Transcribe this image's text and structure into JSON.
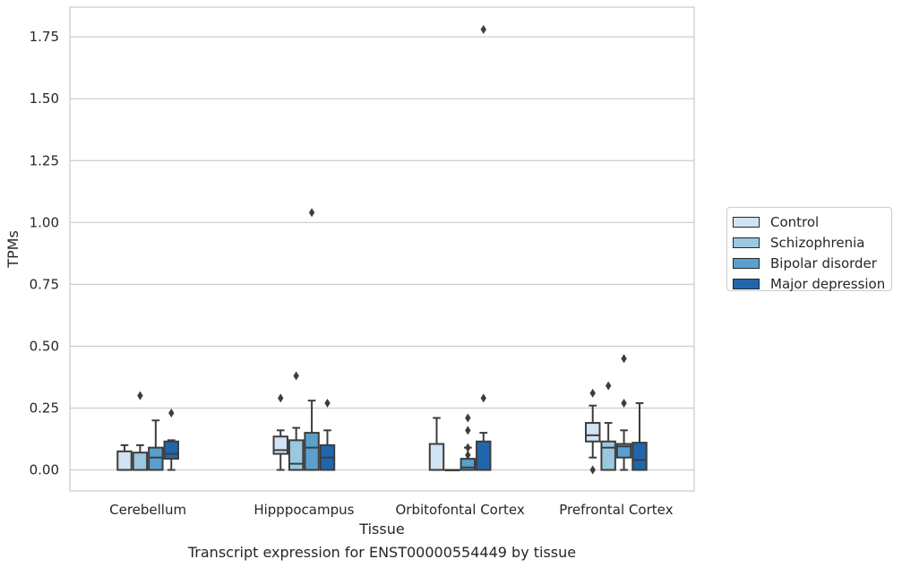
{
  "chart_data": {
    "type": "box",
    "title": "Transcript expression for ENST00000554449 by tissue",
    "xlabel": "Tissue",
    "ylabel": "TPMs",
    "ylim": [
      -0.085,
      1.87
    ],
    "yticks": [
      "0.00",
      "0.25",
      "0.50",
      "0.75",
      "1.00",
      "1.25",
      "1.50",
      "1.75"
    ],
    "ytick_values": [
      0,
      0.25,
      0.5,
      0.75,
      1.0,
      1.25,
      1.5,
      1.75
    ],
    "grid": true,
    "legend_position": "right",
    "categories": [
      "Cerebellum",
      "Hipppocampus",
      "Orbitofontal Cortex",
      "Prefrontal Cortex"
    ],
    "series": [
      {
        "name": "Control",
        "color": "#d2e3f3",
        "boxes": [
          {
            "whislo": 0.0,
            "q1": 0.0,
            "med": 0.0,
            "q3": 0.075,
            "whishi": 0.1,
            "fliers": []
          },
          {
            "whislo": 0.0,
            "q1": 0.065,
            "med": 0.08,
            "q3": 0.135,
            "whishi": 0.16,
            "fliers": [
              0.29
            ]
          },
          {
            "whislo": 0.0,
            "q1": 0.0,
            "med": 0.0,
            "q3": 0.105,
            "whishi": 0.21,
            "fliers": []
          },
          {
            "whislo": 0.05,
            "q1": 0.115,
            "med": 0.14,
            "q3": 0.19,
            "whishi": 0.26,
            "fliers": [
              0.0,
              0.31
            ]
          }
        ]
      },
      {
        "name": "Schizophrenia",
        "color": "#9ac8e0",
        "boxes": [
          {
            "whislo": 0.0,
            "q1": 0.0,
            "med": 0.0,
            "q3": 0.07,
            "whishi": 0.1,
            "fliers": [
              0.3
            ]
          },
          {
            "whislo": 0.0,
            "q1": 0.0,
            "med": 0.025,
            "q3": 0.12,
            "whishi": 0.17,
            "fliers": [
              0.38
            ]
          },
          {
            "whislo": 0.0,
            "q1": 0.0,
            "med": 0.0,
            "q3": 0.0,
            "whishi": 0.0,
            "fliers": []
          },
          {
            "whislo": 0.0,
            "q1": 0.0,
            "med": 0.09,
            "q3": 0.115,
            "whishi": 0.19,
            "fliers": [
              0.34
            ]
          }
        ]
      },
      {
        "name": "Bipolar disorder",
        "color": "#5aa0cd",
        "boxes": [
          {
            "whislo": 0.0,
            "q1": 0.0,
            "med": 0.05,
            "q3": 0.09,
            "whishi": 0.2,
            "fliers": []
          },
          {
            "whislo": 0.0,
            "q1": 0.0,
            "med": 0.09,
            "q3": 0.15,
            "whishi": 0.28,
            "fliers": [
              1.04
            ]
          },
          {
            "whislo": 0.0,
            "q1": 0.0,
            "med": 0.01,
            "q3": 0.045,
            "whishi": 0.09,
            "fliers": [
              0.06,
              0.09,
              0.16,
              0.21
            ]
          },
          {
            "whislo": 0.0,
            "q1": 0.05,
            "med": 0.095,
            "q3": 0.105,
            "whishi": 0.16,
            "fliers": [
              0.27,
              0.45
            ]
          }
        ]
      },
      {
        "name": "Major depression",
        "color": "#2166ac",
        "boxes": [
          {
            "whislo": 0.0,
            "q1": 0.045,
            "med": 0.065,
            "q3": 0.115,
            "whishi": 0.12,
            "fliers": [
              0.23
            ]
          },
          {
            "whislo": 0.0,
            "q1": 0.0,
            "med": 0.05,
            "q3": 0.1,
            "whishi": 0.16,
            "fliers": [
              0.27
            ]
          },
          {
            "whislo": 0.0,
            "q1": 0.0,
            "med": 0.0,
            "q3": 0.115,
            "whishi": 0.15,
            "fliers": [
              0.29,
              1.78
            ]
          },
          {
            "whislo": 0.0,
            "q1": 0.0,
            "med": 0.04,
            "q3": 0.11,
            "whishi": 0.27,
            "fliers": []
          }
        ]
      }
    ]
  }
}
